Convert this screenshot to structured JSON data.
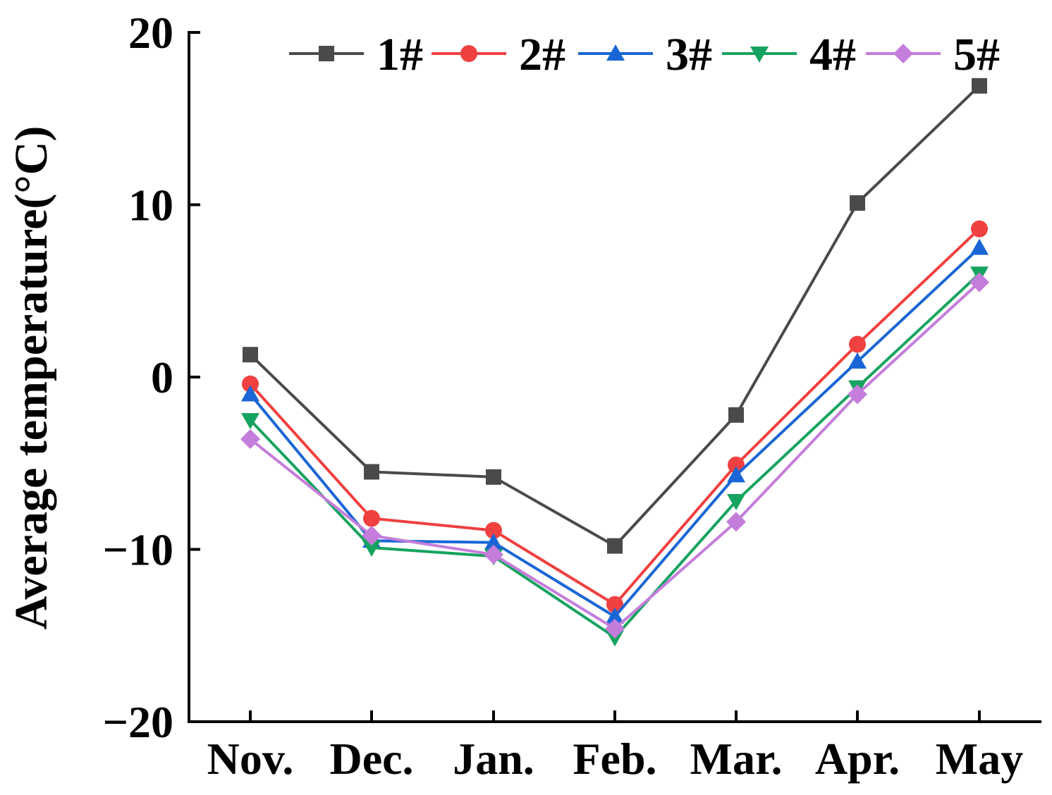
{
  "chart_data": {
    "type": "line",
    "title": "",
    "xlabel": "",
    "ylabel": "Average temperature(°C)",
    "categories": [
      "Nov.",
      "Dec.",
      "Jan.",
      "Feb.",
      "Mar.",
      "Apr.",
      "May"
    ],
    "ylim": [
      -20,
      20
    ],
    "yticks": [
      20,
      10,
      0,
      -10,
      -20
    ],
    "ytick_labels": [
      "20",
      "10",
      "0",
      "−10",
      "−20"
    ],
    "grid": false,
    "legend_position": "top",
    "series": [
      {
        "name": "1#",
        "color": "#4a4a4a",
        "marker": "square",
        "values": [
          1.3,
          -5.5,
          -5.8,
          -9.8,
          -2.2,
          10.1,
          16.9
        ]
      },
      {
        "name": "2#",
        "color": "#f04040",
        "marker": "circle",
        "values": [
          -0.4,
          -8.2,
          -8.9,
          -13.2,
          -5.1,
          1.9,
          8.6
        ]
      },
      {
        "name": "3#",
        "color": "#1a66d6",
        "marker": "triangle-up",
        "values": [
          -1.0,
          -9.5,
          -9.6,
          -13.9,
          -5.7,
          0.9,
          7.5
        ]
      },
      {
        "name": "4#",
        "color": "#16a35f",
        "marker": "triangle-down",
        "values": [
          -2.5,
          -9.9,
          -10.4,
          -15.1,
          -7.2,
          -0.6,
          6.0
        ]
      },
      {
        "name": "5#",
        "color": "#c47ddb",
        "marker": "diamond",
        "values": [
          -3.6,
          -9.2,
          -10.3,
          -14.6,
          -8.4,
          -1.0,
          5.5
        ]
      }
    ]
  }
}
